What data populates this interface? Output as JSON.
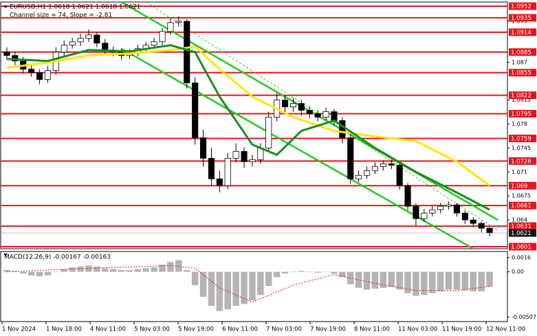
{
  "chart_data": [
    {
      "type": "candlestick",
      "title": "EURUSD,H1  1.0618 1.0621 1.0618 1.0621",
      "subtitle": "Channel size = 74, Slope = -2.81",
      "xtick_labels": [
        "1 Nov 2024",
        "1 Nov 18:00",
        "4 Nov 11:00",
        "5 Nov 03:00",
        "5 Nov 19:00",
        "6 Nov 11:00",
        "7 Nov 03:00",
        "7 Nov 19:00",
        "8 Nov 11:00",
        "11 Nov 03:00",
        "11 Nov 19:00",
        "12 Nov 11:00"
      ],
      "open": [
        1.0885,
        1.088,
        1.0872,
        1.086,
        1.0855,
        1.0845,
        1.0858,
        1.0885,
        1.0895,
        1.09,
        1.0905,
        1.091,
        1.0898,
        1.0888,
        1.0885,
        1.088,
        1.0884,
        1.089,
        1.0895,
        1.09,
        1.0915,
        1.0928,
        1.093,
        1.084,
        1.076,
        1.073,
        1.07,
        1.069,
        1.073,
        1.074,
        1.0725,
        1.0728,
        1.0745,
        1.079,
        1.0815,
        1.0805,
        1.081,
        1.08,
        1.0795,
        1.079,
        1.0798,
        1.0785,
        1.076,
        1.07,
        1.0705,
        1.0712,
        1.0718,
        1.0722,
        1.072,
        1.069,
        1.066,
        1.0642,
        1.065,
        1.0655,
        1.066,
        1.0662,
        1.065,
        1.064,
        1.0635,
        1.0628
      ],
      "high": [
        1.0892,
        1.0886,
        1.0878,
        1.0866,
        1.086,
        1.0865,
        1.0892,
        1.0902,
        1.0906,
        1.0912,
        1.0918,
        1.0914,
        1.0904,
        1.0893,
        1.089,
        1.0889,
        1.0896,
        1.09,
        1.0906,
        1.092,
        1.0934,
        1.0937,
        1.0933,
        1.0848,
        1.0772,
        1.0745,
        1.0712,
        1.0738,
        1.0752,
        1.0746,
        1.0735,
        1.0752,
        1.0798,
        1.0825,
        1.0822,
        1.0818,
        1.0815,
        1.0806,
        1.08,
        1.0804,
        1.0802,
        1.079,
        1.0765,
        1.0712,
        1.0718,
        1.0724,
        1.0727,
        1.0728,
        1.0724,
        1.0694,
        1.0664,
        1.0656,
        1.066,
        1.0665,
        1.0667,
        1.0665,
        1.0654,
        1.0644,
        1.0638,
        1.063
      ],
      "low": [
        1.0874,
        1.0866,
        1.0854,
        1.0849,
        1.0838,
        1.084,
        1.0852,
        1.088,
        1.089,
        1.0894,
        1.09,
        1.0892,
        1.0882,
        1.0879,
        1.0874,
        1.0875,
        1.0879,
        1.0885,
        1.089,
        1.0895,
        1.091,
        1.0922,
        1.0832,
        1.075,
        1.0718,
        1.069,
        1.068,
        1.0685,
        1.0724,
        1.0716,
        1.0718,
        1.0722,
        1.074,
        1.0784,
        1.0796,
        1.0798,
        1.0792,
        1.0788,
        1.0784,
        1.0786,
        1.0778,
        1.0752,
        1.0693,
        1.0695,
        1.07,
        1.0707,
        1.0712,
        1.0714,
        1.0684,
        1.0654,
        1.0632,
        1.0637,
        1.0645,
        1.065,
        1.0655,
        1.0645,
        1.0634,
        1.063,
        1.0622,
        1.0616
      ],
      "close": [
        1.088,
        1.0872,
        1.086,
        1.0855,
        1.0845,
        1.0858,
        1.0885,
        1.0895,
        1.09,
        1.0905,
        1.091,
        1.0898,
        1.0888,
        1.0885,
        1.088,
        1.0884,
        1.089,
        1.0895,
        1.09,
        1.0915,
        1.0928,
        1.093,
        1.084,
        1.076,
        1.073,
        1.07,
        1.069,
        1.073,
        1.074,
        1.0725,
        1.0728,
        1.0745,
        1.079,
        1.0815,
        1.0805,
        1.081,
        1.08,
        1.0795,
        1.079,
        1.0798,
        1.0785,
        1.076,
        1.07,
        1.0705,
        1.0712,
        1.0718,
        1.0722,
        1.072,
        1.069,
        1.066,
        1.0642,
        1.065,
        1.0655,
        1.066,
        1.0662,
        1.065,
        1.064,
        1.0635,
        1.0628,
        1.0621
      ],
      "series": [
        {
          "color": "#ffe600",
          "x": [
            0,
            5,
            10,
            15,
            20,
            23,
            26,
            30,
            35,
            40,
            45,
            50,
            55,
            59
          ],
          "values": [
            1.0862,
            1.087,
            1.088,
            1.0883,
            1.0888,
            1.0893,
            1.086,
            1.082,
            1.079,
            1.077,
            1.0762,
            1.0755,
            1.0725,
            1.069
          ]
        },
        {
          "color": "#1f8a1f",
          "x": [
            0,
            5,
            10,
            15,
            20,
            23,
            26,
            30,
            33,
            36,
            40,
            45,
            50,
            55,
            59
          ],
          "values": [
            1.0875,
            1.0872,
            1.0888,
            1.0886,
            1.0895,
            1.0885,
            1.082,
            1.075,
            1.0735,
            1.077,
            1.0785,
            1.0745,
            1.071,
            1.068,
            1.0655
          ]
        }
      ],
      "channel": {
        "color": "#22cc22",
        "upper": {
          "x": [
            14,
            60
          ],
          "values": [
            1.0958,
            1.064
          ]
        },
        "middle": {
          "x": [
            17,
            60
          ],
          "values": [
            1.0958,
            1.0625
          ]
        },
        "lower": {
          "x": [
            14,
            57
          ],
          "values": [
            1.089,
            1.0598
          ]
        }
      },
      "levels": [
        1.0952,
        1.0935,
        1.0914,
        1.0885,
        1.0855,
        1.0822,
        1.0795,
        1.0759,
        1.0726,
        1.069,
        1.0661,
        1.0631,
        1.0601
      ],
      "level_color": "#e8141c",
      "last_price": 1.0621,
      "ylim": [
        1.0598,
        1.0958
      ],
      "yticks": [
        1.093,
        1.087,
        1.0815,
        1.078,
        1.0745,
        1.071,
        1.0675,
        1.064
      ]
    },
    {
      "type": "bar",
      "title": "MACD(12,26,9) -0.00167 -0.00163",
      "color": "#b4b4b4",
      "values": [
        0.0002,
        0.0001,
        -0.0002,
        -0.0004,
        -0.0005,
        -0.0004,
        0.0,
        0.0003,
        0.0005,
        0.0006,
        0.0007,
        0.0006,
        0.0004,
        0.0003,
        0.0002,
        0.0002,
        0.0003,
        0.0004,
        0.0005,
        0.0008,
        0.0011,
        0.0013,
        0.0002,
        -0.0015,
        -0.0028,
        -0.0038,
        -0.0044,
        -0.0042,
        -0.0038,
        -0.0036,
        -0.0032,
        -0.0026,
        -0.0016,
        -0.0006,
        -0.0002,
        0.0,
        0.0001,
        0.0,
        -0.0001,
        0.0,
        -0.0002,
        -0.0006,
        -0.0014,
        -0.0018,
        -0.002,
        -0.0019,
        -0.0018,
        -0.0017,
        -0.002,
        -0.0024,
        -0.0027,
        -0.0026,
        -0.0024,
        -0.0022,
        -0.002,
        -0.002,
        -0.0021,
        -0.0022,
        -0.0022,
        -0.00167
      ],
      "signal": {
        "color": "#e8141c",
        "x": [
          0,
          10,
          20,
          23,
          26,
          30,
          35,
          40,
          45,
          50,
          55,
          59
        ],
        "values": [
          0.0,
          0.0004,
          0.0007,
          0.0004,
          -0.0018,
          -0.0034,
          -0.0015,
          -0.0003,
          -0.0013,
          -0.0021,
          -0.0021,
          -0.00163
        ]
      },
      "ylim": [
        -0.0055,
        0.0022
      ],
      "yticks": [
        0.0016,
        {
          "value": 0,
          "label": "0.00"
        },
        -0.00507
      ]
    }
  ]
}
